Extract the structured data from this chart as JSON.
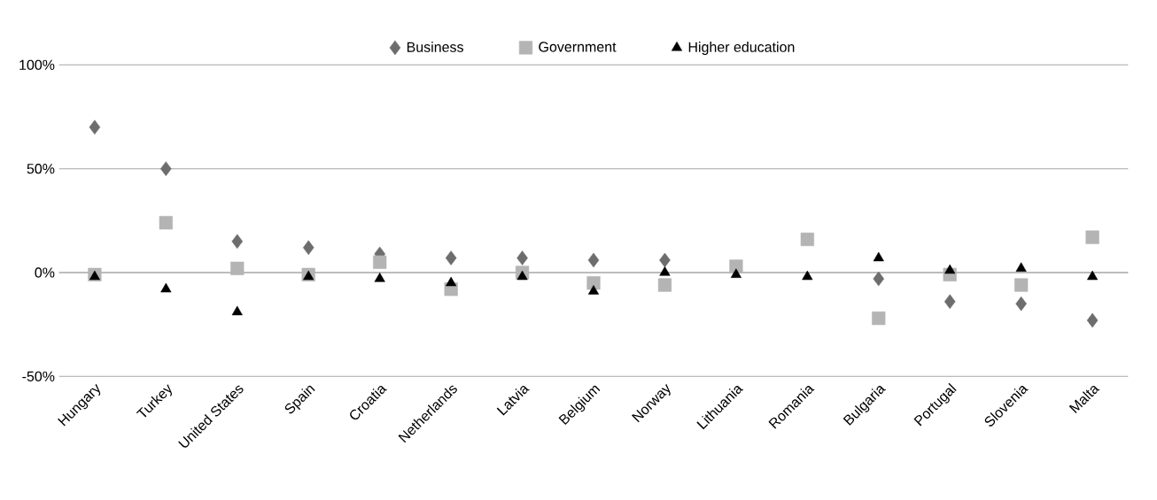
{
  "chart_data": {
    "type": "scatter",
    "categories": [
      "Hungary",
      "Turkey",
      "United States",
      "Spain",
      "Croatia",
      "Netherlands",
      "Latvia",
      "Belgium",
      "Norway",
      "Lithuania",
      "Romania",
      "Bulgaria",
      "Portugal",
      "Slovenia",
      "Malta"
    ],
    "series": [
      {
        "name": "Business",
        "color": "#6d6d6d",
        "marker": "diamond",
        "values": [
          70,
          50,
          15,
          12,
          9,
          7,
          7,
          6,
          6,
          null,
          null,
          -3,
          -14,
          -15,
          -23
        ]
      },
      {
        "name": "Government",
        "color": "#b4b4b4",
        "marker": "square",
        "values": [
          -1,
          24,
          2,
          -1,
          5,
          -8,
          0,
          -5,
          -6,
          3,
          16,
          -22,
          -1,
          -6,
          17
        ]
      },
      {
        "name": "Higher education",
        "color": "#000000",
        "marker": "triangle",
        "values": [
          -2,
          -8,
          -19,
          -2,
          -3,
          -5,
          -2,
          -9,
          0,
          -1,
          -2,
          7,
          1,
          2,
          -2
        ]
      }
    ],
    "ylim": [
      -50,
      100
    ],
    "yticks": [
      {
        "value": -50,
        "label": "-50%"
      },
      {
        "value": 0,
        "label": "0%"
      },
      {
        "value": 50,
        "label": "50%"
      },
      {
        "value": 100,
        "label": "100%"
      }
    ],
    "grid": "y",
    "legend": "top"
  }
}
